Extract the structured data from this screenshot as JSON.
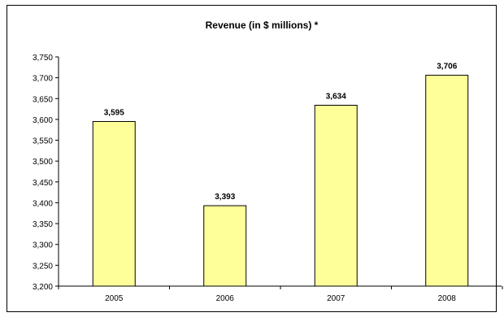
{
  "chart_data": {
    "type": "bar",
    "title": "Revenue (in $ millions) *",
    "xlabel": "",
    "ylabel": "",
    "categories": [
      "2005",
      "2006",
      "2007",
      "2008"
    ],
    "values": [
      3595,
      3393,
      3634,
      3706
    ],
    "value_labels": [
      "3,595",
      "3,393",
      "3,634",
      "3,706"
    ],
    "ylim": [
      3200,
      3750
    ],
    "ytick_step": 50,
    "ytick_labels": [
      "3,200",
      "3,250",
      "3,300",
      "3,350",
      "3,400",
      "3,450",
      "3,500",
      "3,550",
      "3,600",
      "3,650",
      "3,700",
      "3,750"
    ],
    "grid": false,
    "legend": "none",
    "colors": {
      "bar_fill": "#ffff99",
      "bar_stroke": "#000000",
      "axis": "#000000"
    }
  }
}
